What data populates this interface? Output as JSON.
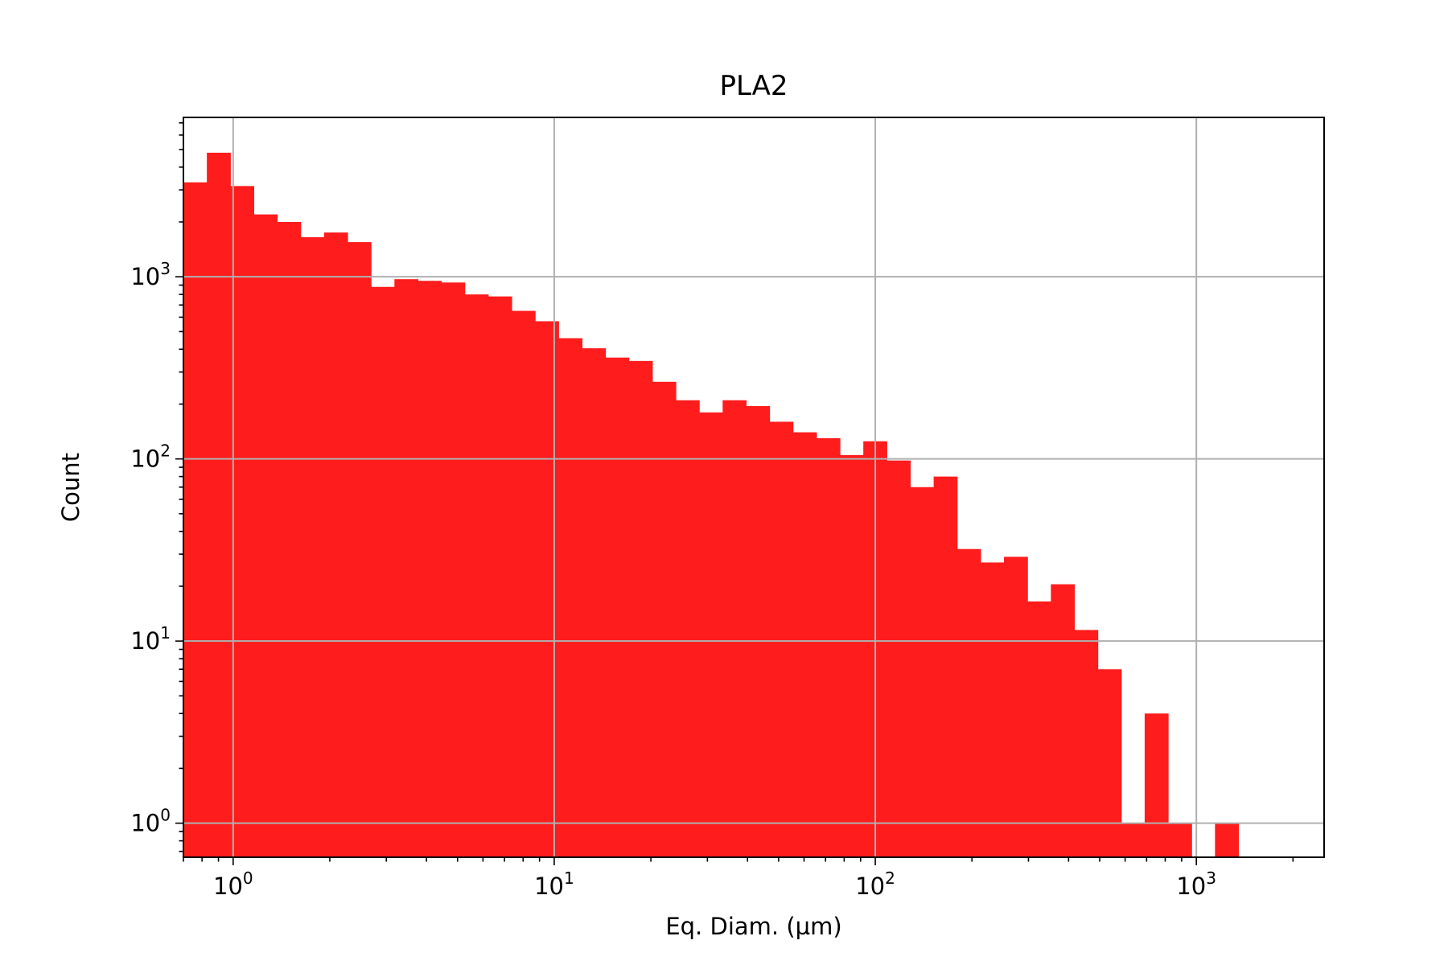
{
  "chart_data": {
    "type": "bar",
    "title": "PLA2",
    "xlabel": "Eq. Diam. (µm)",
    "ylabel": "Count",
    "xscale": "log",
    "yscale": "log",
    "xlim": [
      0.7,
      2500
    ],
    "ylim": [
      0.65,
      7500
    ],
    "grid": true,
    "bar_color": "#ff1c1c",
    "x_ticks": [
      {
        "value": 1,
        "base": "10",
        "exp": "0"
      },
      {
        "value": 10,
        "base": "10",
        "exp": "1"
      },
      {
        "value": 100,
        "base": "10",
        "exp": "2"
      },
      {
        "value": 1000,
        "base": "10",
        "exp": "3"
      }
    ],
    "y_ticks": [
      {
        "value": 1,
        "base": "10",
        "exp": "0"
      },
      {
        "value": 10,
        "base": "10",
        "exp": "1"
      },
      {
        "value": 100,
        "base": "10",
        "exp": "2"
      },
      {
        "value": 1000,
        "base": "10",
        "exp": "3"
      }
    ],
    "bin_range": [
      0.7,
      1600
    ],
    "bins_count": 46,
    "counts": [
      3300,
      4800,
      3150,
      2200,
      2000,
      1650,
      1750,
      1550,
      880,
      970,
      950,
      930,
      800,
      780,
      650,
      570,
      460,
      405,
      360,
      345,
      265,
      210,
      180,
      210,
      195,
      160,
      140,
      130,
      105,
      125,
      98,
      70,
      80,
      32,
      27,
      29,
      16.5,
      20.5,
      11.5,
      7,
      1,
      4,
      1,
      0,
      1,
      0
    ]
  }
}
